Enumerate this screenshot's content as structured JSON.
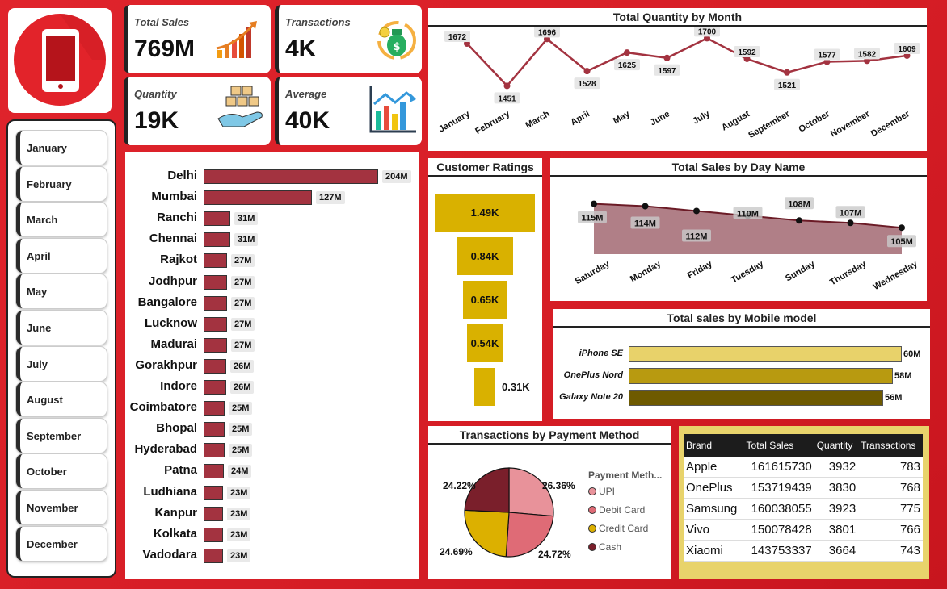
{
  "kpis": {
    "total_sales": {
      "label": "Total Sales",
      "value": "769M"
    },
    "transactions": {
      "label": "Transactions",
      "value": "4K"
    },
    "quantity": {
      "label": "Quantity",
      "value": "19K"
    },
    "average": {
      "label": "Average",
      "value": "40K"
    }
  },
  "months": [
    "January",
    "February",
    "March",
    "April",
    "May",
    "June",
    "July",
    "August",
    "September",
    "October",
    "November",
    "December"
  ],
  "colors": {
    "bar": "#a33340",
    "line": "#a33340",
    "funnel": "#d9b100",
    "area": "#b07f87"
  },
  "chart_data": [
    {
      "type": "line",
      "title": "Total Quantity by Month",
      "categories": [
        "January",
        "February",
        "March",
        "April",
        "May",
        "June",
        "July",
        "August",
        "September",
        "October",
        "November",
        "December"
      ],
      "values": [
        1672,
        1451,
        1696,
        1528,
        1625,
        1597,
        1700,
        1592,
        1521,
        1577,
        1582,
        1609
      ],
      "labels": [
        "1672",
        "1451",
        "1696",
        "1528",
        "1625",
        "1597",
        "1700",
        "1592",
        "1521",
        "1577",
        "1582",
        "1609"
      ]
    },
    {
      "type": "bar",
      "orientation": "horizontal",
      "title": "",
      "categories": [
        "Delhi",
        "Mumbai",
        "Ranchi",
        "Chennai",
        "Rajkot",
        "Jodhpur",
        "Bangalore",
        "Lucknow",
        "Madurai",
        "Gorakhpur",
        "Indore",
        "Coimbatore",
        "Bhopal",
        "Hyderabad",
        "Patna",
        "Ludhiana",
        "Kanpur",
        "Kolkata",
        "Vadodara"
      ],
      "values": [
        204,
        127,
        31,
        31,
        27,
        27,
        27,
        27,
        27,
        26,
        26,
        25,
        25,
        25,
        24,
        23,
        23,
        23,
        23
      ],
      "labels": [
        "204M",
        "127M",
        "31M",
        "31M",
        "27M",
        "27M",
        "27M",
        "27M",
        "27M",
        "26M",
        "26M",
        "25M",
        "25M",
        "25M",
        "24M",
        "23M",
        "23M",
        "23M",
        "23M"
      ]
    },
    {
      "type": "funnel",
      "title": "Customer Ratings",
      "values": [
        1.49,
        0.84,
        0.65,
        0.54,
        0.31
      ],
      "labels": [
        "1.49K",
        "0.84K",
        "0.65K",
        "0.54K",
        "0.31K"
      ]
    },
    {
      "type": "area",
      "title": "Total Sales by Day Name",
      "categories": [
        "Saturday",
        "Monday",
        "Friday",
        "Tuesday",
        "Sunday",
        "Thursday",
        "Wednesday"
      ],
      "values": [
        115,
        114,
        112,
        110,
        108,
        107,
        105
      ],
      "labels": [
        "115M",
        "114M",
        "112M",
        "110M",
        "108M",
        "107M",
        "105M"
      ]
    },
    {
      "type": "bar",
      "orientation": "horizontal",
      "title": "Total sales by Mobile model",
      "categories": [
        "iPhone SE",
        "OnePlus Nord",
        "Galaxy Note 20"
      ],
      "values": [
        60,
        58,
        56
      ],
      "labels": [
        "60M",
        "58M",
        "56M"
      ],
      "colors": [
        "#e8d26a",
        "#b89a10",
        "#6e5a00"
      ]
    },
    {
      "type": "pie",
      "title": "Transactions by Payment Method",
      "legend_title": "Payment Meth...",
      "categories": [
        "UPI",
        "Debit Card",
        "Credit Card",
        "Cash"
      ],
      "values": [
        26.36,
        24.72,
        24.69,
        24.22
      ],
      "labels": [
        "26.36%",
        "24.72%",
        "24.69%",
        "24.22%"
      ],
      "colors": [
        "#e8929a",
        "#df6b76",
        "#dcb000",
        "#7a1f2b"
      ]
    },
    {
      "type": "table",
      "columns": [
        "Brand",
        "Total Sales",
        "Quantity",
        "Transactions"
      ],
      "rows": [
        [
          "Apple",
          "161615730",
          "3932",
          "783"
        ],
        [
          "OnePlus",
          "153719439",
          "3830",
          "768"
        ],
        [
          "Samsung",
          "160038055",
          "3923",
          "775"
        ],
        [
          "Vivo",
          "150078428",
          "3801",
          "766"
        ],
        [
          "Xiaomi",
          "143753337",
          "3664",
          "743"
        ]
      ]
    }
  ]
}
